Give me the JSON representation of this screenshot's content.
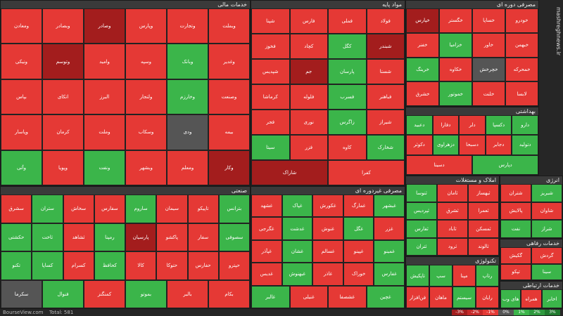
{
  "header": {
    "watermark": "mashreghnews.ir"
  },
  "sectors": [
    {
      "title": "خدمات مالی",
      "tiles": [
        {
          "label": "وبملت",
          "color": "#e53935"
        },
        {
          "label": "وتجارت",
          "color": "#e53935"
        },
        {
          "label": "وپارس",
          "color": "#e53935"
        },
        {
          "label": "وصادر",
          "color": "#a31d1d"
        },
        {
          "label": "وبصادر",
          "color": "#e53935"
        },
        {
          "label": "ومعادن",
          "color": "#e53935"
        },
        {
          "label": "وغدیر",
          "color": "#e53935"
        },
        {
          "label": "وبانک",
          "color": "#3bb54a"
        },
        {
          "label": "وسپه",
          "color": "#e53935"
        },
        {
          "label": "وامید",
          "color": "#e53935"
        },
        {
          "label": "وتوسم",
          "color": "#a31d1d"
        },
        {
          "label": "ونیکی",
          "color": "#e53935"
        },
        {
          "label": "وصنعت",
          "color": "#e53935"
        },
        {
          "label": "وخارزم",
          "color": "#3bb54a"
        },
        {
          "label": "ولتجار",
          "color": "#e53935"
        },
        {
          "label": "البرز",
          "color": "#e53935"
        },
        {
          "label": "اتکای",
          "color": "#e53935"
        },
        {
          "label": "بپاس",
          "color": "#e53935"
        },
        {
          "label": "بیمه",
          "color": "#e53935"
        },
        {
          "label": "ودی",
          "color": "#555555"
        },
        {
          "label": "وسکاب",
          "color": "#e53935"
        },
        {
          "label": "وملت",
          "color": "#e53935"
        },
        {
          "label": "کرمان",
          "color": "#e53935"
        },
        {
          "label": "وپاسار",
          "color": "#e53935"
        },
        {
          "label": "وکار",
          "color": "#a31d1d"
        },
        {
          "label": "ومعلم",
          "color": "#e53935"
        },
        {
          "label": "وبشهر",
          "color": "#e53935"
        },
        {
          "label": "ونفت",
          "color": "#3bb54a"
        },
        {
          "label": "وپویا",
          "color": "#e53935"
        },
        {
          "label": "وآتی",
          "color": "#3bb54a"
        }
      ]
    },
    {
      "title": "مواد پایه",
      "tiles": [
        {
          "label": "فولاد",
          "color": "#e53935"
        },
        {
          "label": "فملی",
          "color": "#e53935"
        },
        {
          "label": "فارس",
          "color": "#e53935"
        },
        {
          "label": "شپنا",
          "color": "#e53935"
        },
        {
          "label": "شبندر",
          "color": "#a31d1d"
        },
        {
          "label": "کگل",
          "color": "#3bb54a"
        },
        {
          "label": "کچاد",
          "color": "#e53935"
        },
        {
          "label": "فخوز",
          "color": "#e53935"
        },
        {
          "label": "شستا",
          "color": "#e53935"
        },
        {
          "label": "پارسان",
          "color": "#3bb54a"
        },
        {
          "label": "جم",
          "color": "#a31d1d"
        },
        {
          "label": "شپدیس",
          "color": "#e53935"
        },
        {
          "label": "فباهنر",
          "color": "#e53935"
        },
        {
          "label": "فسرب",
          "color": "#3bb54a"
        },
        {
          "label": "فلوله",
          "color": "#e53935"
        },
        {
          "label": "کرماشا",
          "color": "#e53935"
        },
        {
          "label": "شیراز",
          "color": "#e53935"
        },
        {
          "label": "زاگرس",
          "color": "#3bb54a"
        },
        {
          "label": "نوری",
          "color": "#e53935"
        },
        {
          "label": "فجر",
          "color": "#e53935"
        },
        {
          "label": "شخارک",
          "color": "#3bb54a"
        },
        {
          "label": "کاوه",
          "color": "#e53935"
        },
        {
          "label": "فزر",
          "color": "#e53935"
        },
        {
          "label": "سیتا",
          "color": "#3bb54a"
        },
        {
          "label": "کفرا",
          "color": "#e53935"
        },
        {
          "label": "شاراک",
          "color": "#a31d1d"
        }
      ]
    },
    {
      "title": "مصرفی دوره ای",
      "tiles": [
        {
          "label": "خودرو",
          "color": "#e53935"
        },
        {
          "label": "خساپا",
          "color": "#e53935"
        },
        {
          "label": "خگستر",
          "color": "#e53935"
        },
        {
          "label": "خپارس",
          "color": "#a31d1d"
        },
        {
          "label": "خبهمن",
          "color": "#e53935"
        },
        {
          "label": "خاور",
          "color": "#e53935"
        },
        {
          "label": "خزامیا",
          "color": "#3bb54a"
        },
        {
          "label": "خفنر",
          "color": "#e53935"
        },
        {
          "label": "خمحرکه",
          "color": "#e53935"
        },
        {
          "label": "خچرخش",
          "color": "#555555"
        },
        {
          "label": "خکاوه",
          "color": "#e53935"
        },
        {
          "label": "خرینگ",
          "color": "#3bb54a"
        },
        {
          "label": "لابسا",
          "color": "#e53935"
        },
        {
          "label": "خلنت",
          "color": "#e53935"
        },
        {
          "label": "خموتور",
          "color": "#3bb54a"
        },
        {
          "label": "خشرق",
          "color": "#e53935"
        }
      ]
    },
    {
      "title": "بهداشتی",
      "tiles": [
        {
          "label": "دارو",
          "color": "#3bb54a"
        },
        {
          "label": "دکسپا",
          "color": "#3bb54a"
        },
        {
          "label": "دلر",
          "color": "#e53935"
        },
        {
          "label": "دفارا",
          "color": "#e53935"
        },
        {
          "label": "دعبید",
          "color": "#3bb54a"
        },
        {
          "label": "دتولید",
          "color": "#3bb54a"
        },
        {
          "label": "دجابر",
          "color": "#e53935"
        },
        {
          "label": "دسبحا",
          "color": "#e53935"
        },
        {
          "label": "دزهراوی",
          "color": "#3bb54a"
        },
        {
          "label": "دکوثر",
          "color": "#e53935"
        },
        {
          "label": "دپارس",
          "color": "#3bb54a"
        },
        {
          "label": "دسینا",
          "color": "#e53935"
        }
      ]
    },
    {
      "title": "صنعتی",
      "tiles": [
        {
          "label": "بترانس",
          "color": "#3bb54a"
        },
        {
          "label": "تاپیکو",
          "color": "#e53935"
        },
        {
          "label": "سیمان",
          "color": "#e53935"
        },
        {
          "label": "ساروم",
          "color": "#3bb54a"
        },
        {
          "label": "سفارس",
          "color": "#e53935"
        },
        {
          "label": "سخاش",
          "color": "#e53935"
        },
        {
          "label": "ستران",
          "color": "#3bb54a"
        },
        {
          "label": "سشرق",
          "color": "#e53935"
        },
        {
          "label": "سصوفی",
          "color": "#3bb54a"
        },
        {
          "label": "سفار",
          "color": "#e53935"
        },
        {
          "label": "پاکشو",
          "color": "#e53935"
        },
        {
          "label": "پارسیان",
          "color": "#a31d1d"
        },
        {
          "label": "رمپنا",
          "color": "#3bb54a"
        },
        {
          "label": "ثشاهد",
          "color": "#e53935"
        },
        {
          "label": "ثاخت",
          "color": "#3bb54a"
        },
        {
          "label": "حکشتی",
          "color": "#3bb54a"
        },
        {
          "label": "حپترو",
          "color": "#e53935"
        },
        {
          "label": "حفارس",
          "color": "#e53935"
        },
        {
          "label": "حتوکا",
          "color": "#e53935"
        },
        {
          "label": "کالا",
          "color": "#e53935"
        },
        {
          "label": "کحافظ",
          "color": "#3bb54a"
        },
        {
          "label": "کسرام",
          "color": "#e53935"
        },
        {
          "label": "کساپا",
          "color": "#3bb54a"
        },
        {
          "label": "تکنو",
          "color": "#3bb54a"
        },
        {
          "label": "بکام",
          "color": "#e53935"
        },
        {
          "label": "بالبر",
          "color": "#e53935"
        },
        {
          "label": "بموتو",
          "color": "#3bb54a"
        },
        {
          "label": "کمنگنز",
          "color": "#e53935"
        },
        {
          "label": "فنوال",
          "color": "#3bb54a"
        },
        {
          "label": "سکرما",
          "color": "#555555"
        }
      ]
    },
    {
      "title": "مصرفی غیردوره ای",
      "tiles": [
        {
          "label": "غبشهر",
          "color": "#3bb54a"
        },
        {
          "label": "غمارگ",
          "color": "#e53935"
        },
        {
          "label": "غکورش",
          "color": "#e53935"
        },
        {
          "label": "غپاک",
          "color": "#3bb54a"
        },
        {
          "label": "غشهد",
          "color": "#e53935"
        },
        {
          "label": "غزر",
          "color": "#e53935"
        },
        {
          "label": "غگل",
          "color": "#3bb54a"
        },
        {
          "label": "غنوش",
          "color": "#e53935"
        },
        {
          "label": "غدشت",
          "color": "#3bb54a"
        },
        {
          "label": "غگرجی",
          "color": "#e53935"
        },
        {
          "label": "غمینو",
          "color": "#3bb54a"
        },
        {
          "label": "غپینو",
          "color": "#e53935"
        },
        {
          "label": "غسالم",
          "color": "#e53935"
        },
        {
          "label": "غشان",
          "color": "#3bb54a"
        },
        {
          "label": "غپآذر",
          "color": "#e53935"
        },
        {
          "label": "غفارس",
          "color": "#3bb54a"
        },
        {
          "label": "خوراک",
          "color": "#e53935"
        },
        {
          "label": "غاذر",
          "color": "#e53935"
        },
        {
          "label": "غبهنوش",
          "color": "#3bb54a"
        },
        {
          "label": "غدیس",
          "color": "#e53935"
        },
        {
          "label": "غچین",
          "color": "#3bb54a"
        },
        {
          "label": "غشصفا",
          "color": "#e53935"
        },
        {
          "label": "غنیلی",
          "color": "#e53935"
        },
        {
          "label": "غالبر",
          "color": "#3bb54a"
        }
      ]
    },
    {
      "title": "املاک و مستغلات",
      "tiles": [
        {
          "label": "ثبهساز",
          "color": "#e53935"
        },
        {
          "label": "ثامان",
          "color": "#e53935"
        },
        {
          "label": "ثنوسا",
          "color": "#3bb54a"
        },
        {
          "label": "ثعمرا",
          "color": "#e53935"
        },
        {
          "label": "ثشرق",
          "color": "#e53935"
        },
        {
          "label": "ثپردیس",
          "color": "#3bb54a"
        },
        {
          "label": "ثمسکن",
          "color": "#e53935"
        },
        {
          "label": "ثاباد",
          "color": "#e53935"
        },
        {
          "label": "ثفارس",
          "color": "#3bb54a"
        },
        {
          "label": "ثالوند",
          "color": "#e53935"
        },
        {
          "label": "ثرود",
          "color": "#e53935"
        },
        {
          "label": "ثتران",
          "color": "#3bb54a"
        }
      ]
    },
    {
      "title": "تکنولوژی",
      "tiles": [
        {
          "label": "رتاپ",
          "color": "#3bb54a"
        },
        {
          "label": "مپنا",
          "color": "#e53935"
        },
        {
          "label": "سپ",
          "color": "#3bb54a"
        },
        {
          "label": "تاپکیش",
          "color": "#3bb54a"
        },
        {
          "label": "رایان",
          "color": "#e53935"
        },
        {
          "label": "سیستم",
          "color": "#3bb54a"
        },
        {
          "label": "ماهان",
          "color": "#e53935"
        },
        {
          "label": "فن‌افزار",
          "color": "#e53935"
        }
      ]
    },
    {
      "title": "انرژی",
      "tiles": [
        {
          "label": "شبریز",
          "color": "#3bb54a"
        },
        {
          "label": "شتران",
          "color": "#e53935"
        },
        {
          "label": "شاوان",
          "color": "#e53935"
        },
        {
          "label": "پالایش",
          "color": "#e53935"
        },
        {
          "label": "شراز",
          "color": "#3bb54a"
        },
        {
          "label": "نفت",
          "color": "#3bb54a"
        }
      ]
    },
    {
      "title": "خدمات رفاهی",
      "tiles": [
        {
          "label": "گردش",
          "color": "#e53935"
        },
        {
          "label": "گکیش",
          "color": "#e53935"
        },
        {
          "label": "سینا",
          "color": "#3bb54a"
        },
        {
          "label": "تپکو",
          "color": "#e53935"
        }
      ]
    },
    {
      "title": "خدمات ارتباطی",
      "tiles": [
        {
          "label": "اخابر",
          "color": "#3bb54a"
        },
        {
          "label": "همراه",
          "color": "#e53935"
        },
        {
          "label": "های وب",
          "color": "#3bb54a"
        }
      ]
    }
  ],
  "footer": {
    "site": "BourseView.com",
    "total": "Total: 581"
  },
  "legend": [
    {
      "label": "-3%",
      "color": "#a31d1d"
    },
    {
      "label": "-2%",
      "color": "#c62828"
    },
    {
      "label": "-1%",
      "color": "#e53935"
    },
    {
      "label": "0%",
      "color": "#555555"
    },
    {
      "label": "1%",
      "color": "#3bb54a"
    },
    {
      "label": "2%",
      "color": "#2e9a3e"
    },
    {
      "label": "3%",
      "color": "#1f7a2e"
    }
  ]
}
